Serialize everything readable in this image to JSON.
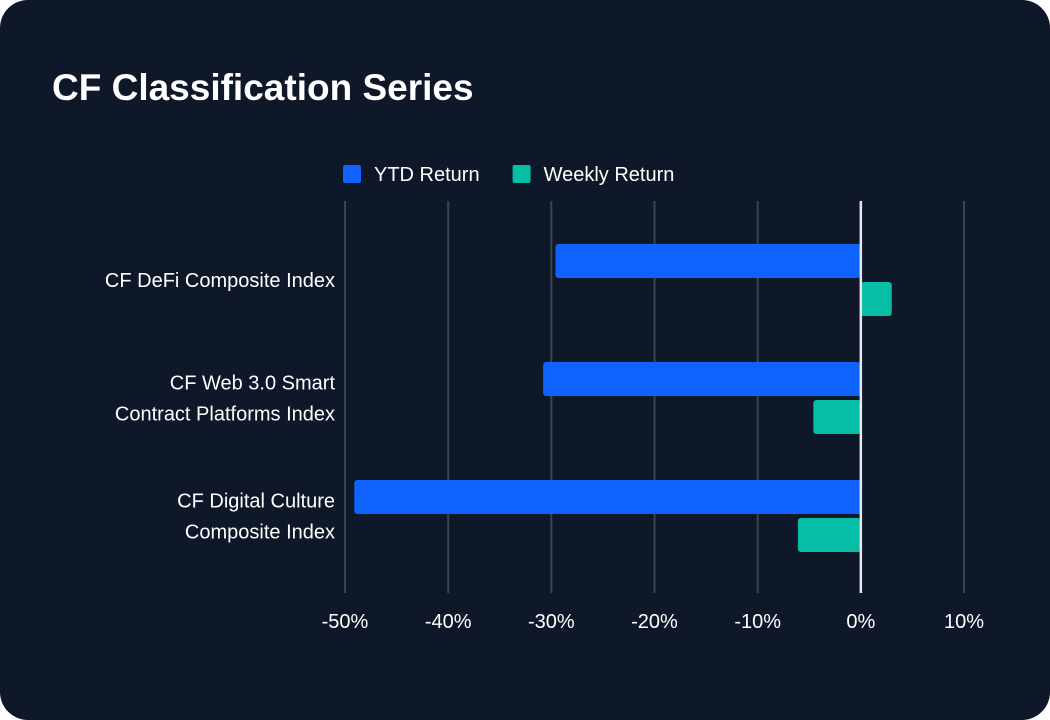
{
  "chart_data": {
    "type": "bar",
    "orientation": "horizontal",
    "title": "CF Classification Series",
    "categories": [
      [
        "CF DeFi Composite Index"
      ],
      [
        "CF Web 3.0 Smart",
        "Contract Platforms Index"
      ],
      [
        "CF Digital Culture",
        "Composite Index"
      ]
    ],
    "series": [
      {
        "name": "YTD Return",
        "color": "#0f62fe",
        "values": [
          -29.6,
          -30.8,
          -49.1
        ]
      },
      {
        "name": "Weekly Return",
        "color": "#08bda5",
        "values": [
          3.0,
          -4.6,
          -6.1
        ]
      }
    ],
    "xlim": [
      -50,
      10
    ],
    "xticks": [
      -50,
      -40,
      -30,
      -20,
      -10,
      0,
      10
    ],
    "xtick_labels": [
      "-50%",
      "-40%",
      "-30%",
      "-20%",
      "-10%",
      "0%",
      "10%"
    ],
    "xlabel": "",
    "ylabel": "",
    "grid": true,
    "legend_position": "top"
  }
}
